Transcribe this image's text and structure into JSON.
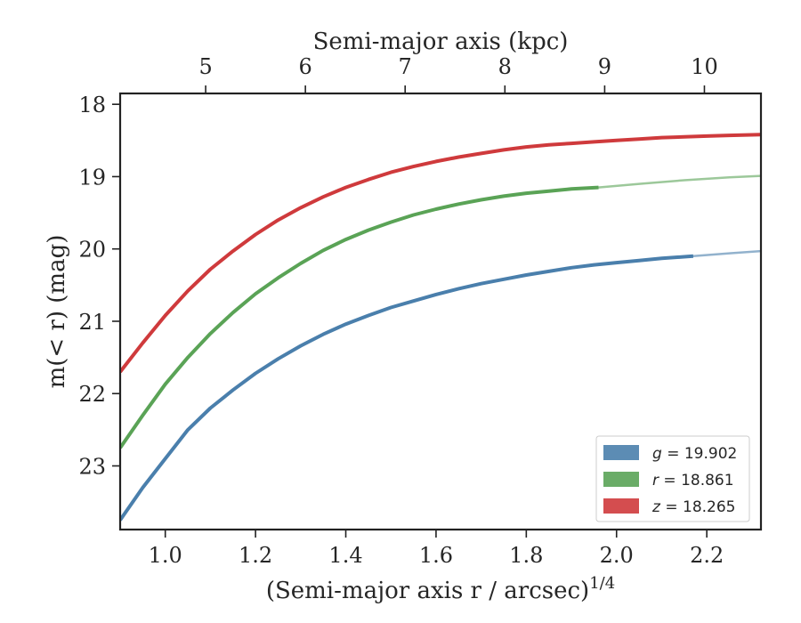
{
  "chart_data": {
    "type": "line",
    "title": "",
    "xlabel": "(Semi-major axis r / arcsec)",
    "xlabel_superscript": "1/4",
    "ylabel": "m(< r) (mag)",
    "top_xlabel": "Semi-major axis (kpc)",
    "xlim": [
      0.9,
      2.32
    ],
    "ylim": [
      23.88,
      17.85
    ],
    "y_inverted": true,
    "grid": false,
    "legend_position": "lower-right",
    "x_ticks": [
      1.0,
      1.2,
      1.4,
      1.6,
      1.8,
      2.0,
      2.2
    ],
    "x_tick_labels": [
      "1.0",
      "1.2",
      "1.4",
      "1.6",
      "1.8",
      "2.0",
      "2.2"
    ],
    "y_ticks": [
      18,
      19,
      20,
      21,
      22,
      23
    ],
    "y_tick_labels": [
      "18",
      "19",
      "20",
      "21",
      "22",
      "23"
    ],
    "top_ticks": [
      5,
      6,
      7,
      8,
      9,
      10
    ],
    "top_tick_positions": [
      1.0895,
      1.3105,
      1.5315,
      1.7526,
      1.9737,
      2.1947
    ],
    "top_tick_labels": [
      "5",
      "6",
      "7",
      "8",
      "9",
      "10"
    ],
    "series": [
      {
        "name": "g = 19.902",
        "legend_symbol": "g",
        "legend_value": "19.902",
        "color": "#4a7fac",
        "data_end": 2.17,
        "x": [
          0.9,
          0.95,
          1.0,
          1.05,
          1.1,
          1.15,
          1.2,
          1.25,
          1.3,
          1.35,
          1.4,
          1.45,
          1.5,
          1.55,
          1.6,
          1.65,
          1.7,
          1.75,
          1.8,
          1.85,
          1.9,
          1.95,
          2.0,
          2.05,
          2.1,
          2.17,
          2.25,
          2.32
        ],
        "y": [
          23.75,
          23.3,
          22.9,
          22.5,
          22.2,
          21.95,
          21.72,
          21.52,
          21.34,
          21.18,
          21.04,
          20.92,
          20.81,
          20.72,
          20.63,
          20.55,
          20.48,
          20.42,
          20.36,
          20.31,
          20.26,
          20.22,
          20.19,
          20.16,
          20.13,
          20.1,
          20.06,
          20.03
        ]
      },
      {
        "name": "r = 18.861",
        "legend_symbol": "r",
        "legend_value": "18.861",
        "color": "#5aa356",
        "data_end": 1.96,
        "x": [
          0.9,
          0.95,
          1.0,
          1.05,
          1.1,
          1.15,
          1.2,
          1.25,
          1.3,
          1.35,
          1.4,
          1.45,
          1.5,
          1.55,
          1.6,
          1.65,
          1.7,
          1.75,
          1.8,
          1.85,
          1.9,
          1.96,
          2.05,
          2.15,
          2.25,
          2.32
        ],
        "y": [
          22.75,
          22.3,
          21.87,
          21.5,
          21.17,
          20.88,
          20.62,
          20.4,
          20.2,
          20.02,
          19.87,
          19.74,
          19.63,
          19.53,
          19.45,
          19.38,
          19.32,
          19.27,
          19.23,
          19.2,
          19.17,
          19.15,
          19.1,
          19.05,
          19.01,
          18.99
        ]
      },
      {
        "name": "z = 18.265",
        "legend_symbol": "z",
        "legend_value": "18.265",
        "color": "#cf3a3c",
        "data_end": 2.32,
        "x": [
          0.9,
          0.95,
          1.0,
          1.05,
          1.1,
          1.15,
          1.2,
          1.25,
          1.3,
          1.35,
          1.4,
          1.45,
          1.5,
          1.55,
          1.6,
          1.65,
          1.7,
          1.75,
          1.8,
          1.85,
          1.9,
          1.95,
          2.0,
          2.05,
          2.1,
          2.15,
          2.2,
          2.25,
          2.32
        ],
        "y": [
          21.7,
          21.3,
          20.92,
          20.58,
          20.28,
          20.03,
          19.8,
          19.6,
          19.43,
          19.28,
          19.15,
          19.04,
          18.94,
          18.86,
          18.79,
          18.73,
          18.68,
          18.63,
          18.59,
          18.56,
          18.54,
          18.52,
          18.5,
          18.48,
          18.46,
          18.45,
          18.44,
          18.43,
          18.42
        ]
      }
    ]
  }
}
